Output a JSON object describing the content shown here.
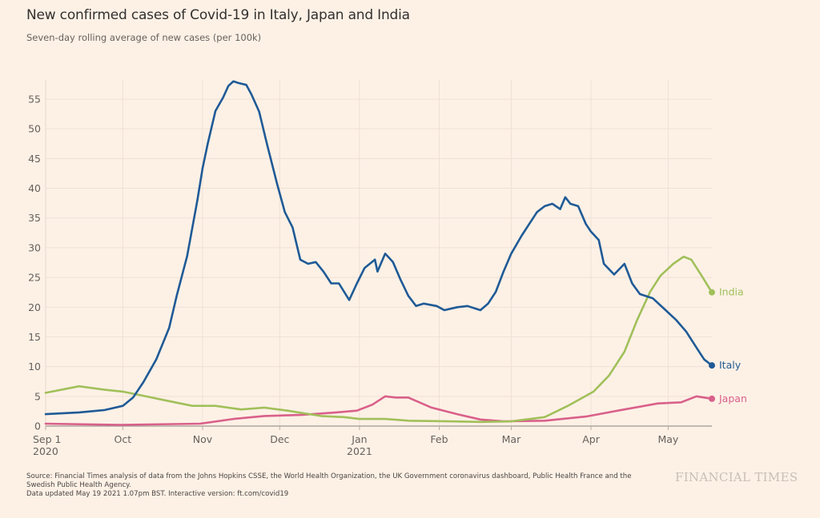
{
  "header": {
    "title": "New confirmed cases of Covid-19 in Italy, Japan and India",
    "subtitle": "Seven-day rolling average of new cases (per 100k)"
  },
  "footer": {
    "source_line1": "Source: Financial Times analysis of data from the Johns Hopkins CSSE, the World Health Organization, the UK Government coronavirus dashboard, Public Health France and the",
    "source_line2": "Swedish Public Health Agency.",
    "updated": "Data updated May 19 2021 1.07pm BST. Interactive version: ft.com/covid19",
    "brand": "FINANCIAL TIMES"
  },
  "chart_data": {
    "type": "line",
    "title": "New confirmed cases of Covid-19 in Italy, Japan and India",
    "subtitle": "Seven-day rolling average of new cases (per 100k)",
    "xlabel": "",
    "ylabel": "",
    "x_unit": "days since 2020-09-01",
    "xlim": [
      0,
      259
    ],
    "ylim": [
      0,
      58
    ],
    "yticks": [
      0,
      5,
      10,
      15,
      20,
      25,
      30,
      35,
      40,
      45,
      50,
      55
    ],
    "xticks": [
      {
        "day": 0,
        "label": "Sep 1",
        "sublabel": "2020"
      },
      {
        "day": 30,
        "label": "Oct",
        "sublabel": ""
      },
      {
        "day": 61,
        "label": "Nov",
        "sublabel": ""
      },
      {
        "day": 91,
        "label": "Dec",
        "sublabel": ""
      },
      {
        "day": 122,
        "label": "Jan",
        "sublabel": "2021"
      },
      {
        "day": 153,
        "label": "Feb",
        "sublabel": ""
      },
      {
        "day": 181,
        "label": "Mar",
        "sublabel": ""
      },
      {
        "day": 212,
        "label": "Apr",
        "sublabel": ""
      },
      {
        "day": 242,
        "label": "May",
        "sublabel": ""
      }
    ],
    "grid": true,
    "legend": "end-of-line labels",
    "series": [
      {
        "name": "India",
        "color": "#a1c05a",
        "x": [
          0,
          13,
          23,
          30,
          38,
          48,
          57,
          66,
          76,
          85,
          94,
          107,
          116,
          122,
          132,
          141,
          157,
          169,
          181,
          194,
          203,
          213,
          219,
          225,
          230,
          235,
          239,
          244,
          248,
          251,
          255,
          259
        ],
        "y": [
          5.6,
          6.7,
          6.1,
          5.8,
          5.1,
          4.2,
          3.4,
          3.4,
          2.8,
          3.1,
          2.6,
          1.7,
          1.5,
          1.2,
          1.2,
          0.9,
          0.8,
          0.7,
          0.8,
          1.5,
          3.4,
          5.8,
          8.5,
          12.5,
          17.9,
          22.6,
          25.3,
          27.3,
          28.5,
          28.0,
          25.3,
          22.5
        ]
      },
      {
        "name": "Italy",
        "color": "#1f5a96",
        "x": [
          0,
          13,
          23,
          30,
          34,
          38,
          43,
          48,
          51,
          55,
          59,
          61,
          63,
          66,
          69,
          71,
          73,
          75,
          78,
          80,
          83,
          86,
          90,
          93,
          96,
          99,
          102,
          105,
          108,
          111,
          114,
          118,
          121,
          124,
          128,
          129,
          132,
          135,
          138,
          141,
          144,
          147,
          152,
          155,
          160,
          164,
          169,
          172,
          175,
          178,
          181,
          185,
          188,
          191,
          194,
          197,
          200,
          202,
          204,
          207,
          210,
          212,
          215,
          217,
          221,
          225,
          228,
          231,
          236,
          240,
          245,
          249,
          253,
          256,
          259
        ],
        "y": [
          2.0,
          2.3,
          2.7,
          3.4,
          4.8,
          7.4,
          11.2,
          16.5,
          22.0,
          28.6,
          38.0,
          43.4,
          47.5,
          53.0,
          55.3,
          57.2,
          58.0,
          57.7,
          57.4,
          55.8,
          52.9,
          47.5,
          40.7,
          36.0,
          33.4,
          28.0,
          27.3,
          27.6,
          26.0,
          24.0,
          24.0,
          21.2,
          24.0,
          26.6,
          28.0,
          26.0,
          29.0,
          27.6,
          24.6,
          21.9,
          20.2,
          20.6,
          20.2,
          19.5,
          20.0,
          20.2,
          19.5,
          20.6,
          22.6,
          26.0,
          29.0,
          32.0,
          34.0,
          36.0,
          37.0,
          37.4,
          36.5,
          38.5,
          37.4,
          37.0,
          34.0,
          32.7,
          31.3,
          27.3,
          25.5,
          27.3,
          24.0,
          22.2,
          21.5,
          19.9,
          17.9,
          15.9,
          13.2,
          11.2,
          10.2
        ]
      },
      {
        "name": "Japan",
        "color": "#d9608a",
        "x": [
          0,
          29,
          60,
          73,
          85,
          100,
          113,
          121,
          127,
          132,
          136,
          141,
          150,
          160,
          169,
          178,
          194,
          210,
          225,
          238,
          247,
          253,
          259
        ],
        "y": [
          0.4,
          0.2,
          0.4,
          1.2,
          1.7,
          1.9,
          2.3,
          2.6,
          3.6,
          5.0,
          4.8,
          4.8,
          3.1,
          2.0,
          1.1,
          0.8,
          0.9,
          1.6,
          2.8,
          3.8,
          4.0,
          5.0,
          4.6
        ]
      }
    ]
  }
}
